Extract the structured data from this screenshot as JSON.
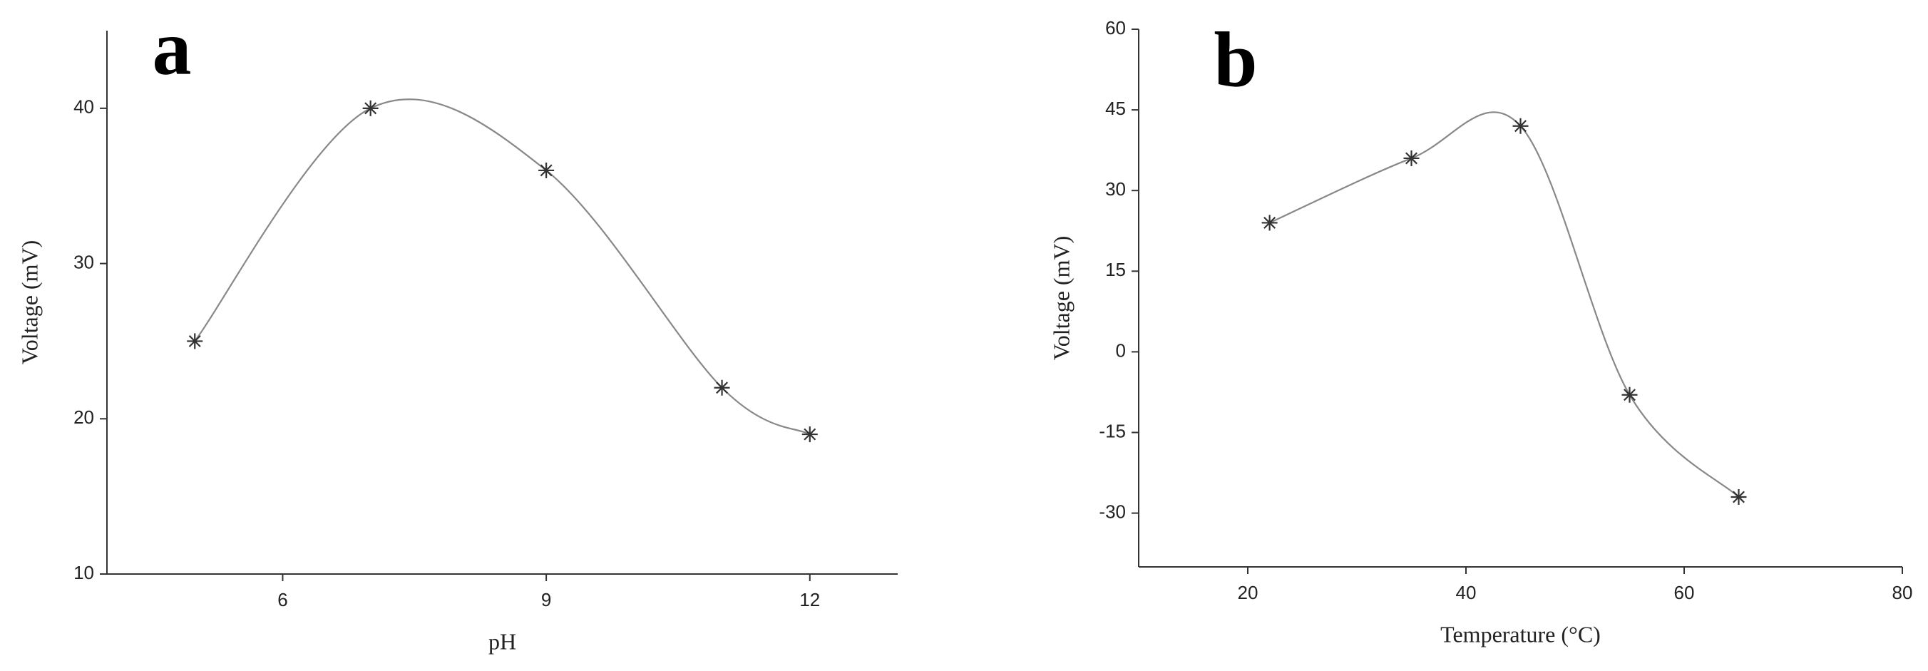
{
  "chart_data": [
    {
      "type": "line",
      "label": "a",
      "x_label": "pH",
      "y_label": "Voltage (mV)",
      "x": [
        5,
        7,
        9,
        11,
        12
      ],
      "series": [
        {
          "name": "Voltage",
          "color": "#333333",
          "values": [
            25,
            40,
            36,
            22,
            19
          ]
        }
      ],
      "xlim": [
        4,
        13
      ],
      "xticks": [
        6,
        9,
        12
      ],
      "ylim": [
        10,
        45
      ],
      "yticks": [
        10,
        20,
        30,
        40
      ],
      "grid": false
    },
    {
      "type": "line",
      "label": "b",
      "x_label": "Temperature (°C)",
      "y_label": "Voltage (mV)",
      "x": [
        22,
        35,
        45,
        55,
        65
      ],
      "series": [
        {
          "name": "Voltage",
          "color": "#333333",
          "values": [
            24,
            36,
            42,
            -8,
            -27
          ]
        }
      ],
      "xlim": [
        10,
        80
      ],
      "xticks": [
        20,
        40,
        60,
        80
      ],
      "ylim": [
        -40,
        60
      ],
      "yticks": [
        -30,
        -15,
        0,
        15,
        30,
        45,
        60
      ],
      "grid": false
    }
  ]
}
